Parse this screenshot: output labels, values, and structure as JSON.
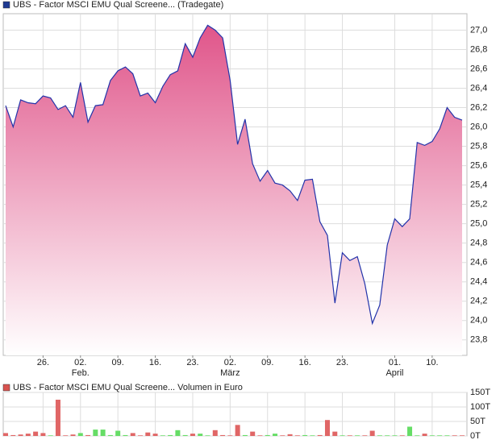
{
  "chart_data": [
    {
      "type": "area",
      "legend": "UBS - Factor MSCI EMU Qual Screene... (Tradegate)",
      "legend_color": "#1f3a93",
      "line_color": "#2233aa",
      "fill_top": "#e0558a",
      "fill_bottom": "#ffffff",
      "grid": true,
      "y_axis_side": "right",
      "categories": [
        null,
        null,
        null,
        null,
        null,
        "26.",
        null,
        null,
        null,
        null,
        "02.",
        null,
        null,
        null,
        null,
        "09.",
        null,
        null,
        null,
        null,
        "16.",
        null,
        null,
        null,
        null,
        "23.",
        null,
        null,
        null,
        null,
        "02.",
        null,
        null,
        null,
        null,
        "09.",
        null,
        null,
        null,
        null,
        "16.",
        null,
        null,
        null,
        null,
        "23.",
        null,
        null,
        null,
        null,
        null,
        null,
        "01.",
        null,
        null,
        null,
        null,
        "10.",
        null,
        null,
        null,
        null
      ],
      "category_groups": [
        null,
        null,
        null,
        null,
        null,
        null,
        null,
        null,
        null,
        null,
        "Feb.",
        null,
        null,
        null,
        null,
        null,
        null,
        null,
        null,
        null,
        null,
        null,
        null,
        null,
        null,
        null,
        null,
        null,
        null,
        null,
        "März",
        null,
        null,
        null,
        null,
        null,
        null,
        null,
        null,
        null,
        null,
        null,
        null,
        null,
        null,
        null,
        null,
        null,
        null,
        null,
        null,
        null,
        "April",
        null,
        null,
        null,
        null,
        null,
        null,
        null,
        null,
        null
      ],
      "values": [
        26.22,
        26.0,
        26.28,
        26.25,
        26.24,
        26.32,
        26.3,
        26.18,
        26.22,
        26.1,
        26.46,
        26.05,
        26.22,
        26.23,
        26.48,
        26.58,
        26.62,
        26.55,
        26.32,
        26.35,
        26.25,
        26.42,
        26.54,
        26.58,
        26.86,
        26.72,
        26.92,
        27.05,
        27.0,
        26.92,
        26.48,
        25.82,
        26.08,
        25.62,
        25.44,
        25.55,
        25.42,
        25.4,
        25.34,
        25.24,
        25.45,
        25.46,
        25.02,
        24.88,
        24.18,
        24.7,
        24.62,
        24.66,
        24.38,
        23.97,
        24.16,
        24.78,
        25.05,
        24.97,
        25.05,
        25.84,
        25.81,
        25.85,
        25.98,
        26.2,
        26.1,
        26.07
      ],
      "ylim": [
        23.64,
        27.17
      ],
      "yticks": [
        {
          "value": 23.8,
          "label": "23,8"
        },
        {
          "value": 24.0,
          "label": "24,0"
        },
        {
          "value": 24.2,
          "label": "24,2"
        },
        {
          "value": 24.4,
          "label": "24,4"
        },
        {
          "value": 24.6,
          "label": "24,6"
        },
        {
          "value": 24.8,
          "label": "24,8"
        },
        {
          "value": 25.0,
          "label": "25,0"
        },
        {
          "value": 25.2,
          "label": "25,2"
        },
        {
          "value": 25.4,
          "label": "25,4"
        },
        {
          "value": 25.6,
          "label": "25,6"
        },
        {
          "value": 25.8,
          "label": "25,8"
        },
        {
          "value": 26.0,
          "label": "26,0"
        },
        {
          "value": 26.2,
          "label": "26,2"
        },
        {
          "value": 26.4,
          "label": "26,4"
        },
        {
          "value": 26.6,
          "label": "26,6"
        },
        {
          "value": 26.8,
          "label": "26,8"
        },
        {
          "value": 27.0,
          "label": "27,0"
        }
      ]
    },
    {
      "type": "bar",
      "legend": "UBS - Factor MSCI EMU Qual Screene... Volumen in Euro",
      "legend_color": "#d9534f",
      "grid": true,
      "y_axis_side": "right",
      "values": [
        10000,
        3000,
        5000,
        8000,
        15000,
        10000,
        2000,
        125000,
        2000,
        5000,
        10000,
        3000,
        22000,
        22000,
        3000,
        18000,
        3000,
        10000,
        2000,
        12000,
        8000,
        2000,
        3000,
        20000,
        3000,
        8000,
        8000,
        2000,
        20000,
        3000,
        2000,
        38000,
        3000,
        15000,
        2000,
        3000,
        8000,
        2000,
        6000,
        2000,
        3000,
        2000,
        3000,
        55000,
        15000,
        2000,
        2000,
        2000,
        2000,
        18000,
        2000,
        2000,
        2000,
        2000,
        32000,
        2000,
        8000,
        2000,
        2000,
        2000,
        2000,
        2000
      ],
      "colors": [
        "#e06666",
        "#e06666",
        "#e06666",
        "#e06666",
        "#e06666",
        "#e06666",
        "#66dd66",
        "#e06666",
        "#e06666",
        "#e06666",
        "#66dd66",
        "#e06666",
        "#66dd66",
        "#66dd66",
        "#66dd66",
        "#66dd66",
        "#66dd66",
        "#e06666",
        "#e06666",
        "#e06666",
        "#e06666",
        "#66dd66",
        "#66dd66",
        "#66dd66",
        "#66dd66",
        "#e06666",
        "#66dd66",
        "#66dd66",
        "#e06666",
        "#e06666",
        "#e06666",
        "#e06666",
        "#66dd66",
        "#e06666",
        "#e06666",
        "#66dd66",
        "#66dd66",
        "#e06666",
        "#e06666",
        "#e06666",
        "#66dd66",
        "#66dd66",
        "#e06666",
        "#e06666",
        "#e06666",
        "#66dd66",
        "#e06666",
        "#66dd66",
        "#e06666",
        "#e06666",
        "#66dd66",
        "#66dd66",
        "#66dd66",
        "#e06666",
        "#66dd66",
        "#66dd66",
        "#e06666",
        "#66dd66",
        "#66dd66",
        "#66dd66",
        "#e06666",
        "#e06666"
      ],
      "ylim": [
        0,
        150000
      ],
      "yticks": [
        {
          "value": 0,
          "label": "0T"
        },
        {
          "value": 50000,
          "label": "50T"
        },
        {
          "value": 100000,
          "label": "100T"
        },
        {
          "value": 150000,
          "label": "150T"
        }
      ]
    }
  ]
}
